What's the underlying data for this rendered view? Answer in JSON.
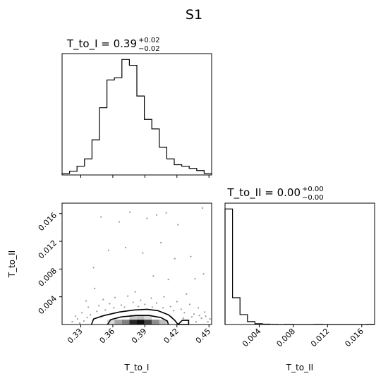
{
  "figure": {
    "title": "S1"
  },
  "chart_data": [
    {
      "type": "bar",
      "panel": "histogram-T_to_I",
      "title_main": "T_to_I = 0.39",
      "title_sup": "+0.02",
      "title_sub": "−0.02",
      "bin_edges": [
        0.3125,
        0.3195,
        0.3265,
        0.3335,
        0.3405,
        0.3475,
        0.3545,
        0.3615,
        0.3685,
        0.3755,
        0.3825,
        0.3895,
        0.3965,
        0.4035,
        0.4105,
        0.4175,
        0.4245,
        0.4315,
        0.4385,
        0.4455,
        0.4525
      ],
      "values": [
        2,
        5,
        12,
        22,
        48,
        92,
        130,
        133,
        158,
        150,
        108,
        76,
        63,
        38,
        22,
        14,
        12,
        9,
        6,
        2
      ],
      "xlim": [
        0.3125,
        0.4525
      ],
      "ylim": [
        0,
        166
      ],
      "xticks": [
        0.33,
        0.36,
        0.39,
        0.42,
        0.45
      ]
    },
    {
      "type": "heatmap",
      "panel": "2d-density-T_to_I-vs-T_to_II",
      "xlabel": "T_to_I",
      "ylabel": "T_to_II",
      "xlim": [
        0.3125,
        0.4525
      ],
      "ylim": [
        0.0,
        0.0175
      ],
      "xticks": [
        0.33,
        0.36,
        0.39,
        0.42,
        0.45
      ],
      "xtick_labels": [
        "0.33",
        "0.36",
        "0.39",
        "0.42",
        "0.45"
      ],
      "yticks": [
        0.004,
        0.008,
        0.012,
        0.016
      ],
      "ytick_labels": [
        "0.004",
        "0.008",
        "0.012",
        "0.016"
      ],
      "density_cells": [
        {
          "x": [
            0.3615,
            0.3685
          ],
          "y": [
            0.0,
            0.0007
          ],
          "level": 0.35
        },
        {
          "x": [
            0.3685,
            0.3755
          ],
          "y": [
            0.0,
            0.0007
          ],
          "level": 0.5
        },
        {
          "x": [
            0.3755,
            0.3825
          ],
          "y": [
            0.0,
            0.0007
          ],
          "level": 0.85
        },
        {
          "x": [
            0.3825,
            0.3895
          ],
          "y": [
            0.0,
            0.0007
          ],
          "level": 0.95
        },
        {
          "x": [
            0.3895,
            0.3965
          ],
          "y": [
            0.0,
            0.0007
          ],
          "level": 0.75
        },
        {
          "x": [
            0.3965,
            0.4035
          ],
          "y": [
            0.0,
            0.0007
          ],
          "level": 0.45
        },
        {
          "x": [
            0.4035,
            0.4105
          ],
          "y": [
            0.0,
            0.0007
          ],
          "level": 0.25
        },
        {
          "x": [
            0.3545,
            0.3615
          ],
          "y": [
            0.0,
            0.0007
          ],
          "level": 0.15
        },
        {
          "x": [
            0.3755,
            0.3825
          ],
          "y": [
            0.0007,
            0.0014
          ],
          "level": 0.2
        },
        {
          "x": [
            0.3825,
            0.3895
          ],
          "y": [
            0.0007,
            0.0014
          ],
          "level": 0.25
        },
        {
          "x": [
            0.3895,
            0.3965
          ],
          "y": [
            0.0007,
            0.0014
          ],
          "level": 0.15
        }
      ],
      "contours": [
        {
          "name": "outer",
          "points": [
            [
              0.34,
              0.0
            ],
            [
              0.342,
              0.0008
            ],
            [
              0.352,
              0.0013
            ],
            [
              0.366,
              0.0018
            ],
            [
              0.38,
              0.0021
            ],
            [
              0.392,
              0.0022
            ],
            [
              0.402,
              0.002
            ],
            [
              0.412,
              0.0014
            ],
            [
              0.418,
              0.0006
            ],
            [
              0.421,
              0.0
            ],
            [
              0.431,
              0.0
            ],
            [
              0.431,
              0.0006
            ],
            [
              0.425,
              0.0006
            ],
            [
              0.421,
              0.0
            ]
          ]
        },
        {
          "name": "inner",
          "points": [
            [
              0.355,
              0.0
            ],
            [
              0.358,
              0.0007
            ],
            [
              0.368,
              0.0011
            ],
            [
              0.382,
              0.0013
            ],
            [
              0.394,
              0.0013
            ],
            [
              0.405,
              0.001
            ],
            [
              0.411,
              0.0005
            ],
            [
              0.412,
              0.0
            ]
          ]
        }
      ],
      "scatter_points": [
        [
          0.349,
          0.0155
        ],
        [
          0.366,
          0.0148
        ],
        [
          0.376,
          0.0162
        ],
        [
          0.392,
          0.0153
        ],
        [
          0.401,
          0.0158
        ],
        [
          0.41,
          0.0161
        ],
        [
          0.421,
          0.0144
        ],
        [
          0.444,
          0.0168
        ],
        [
          0.356,
          0.0107
        ],
        [
          0.372,
          0.0111
        ],
        [
          0.388,
          0.0103
        ],
        [
          0.405,
          0.0118
        ],
        [
          0.418,
          0.0095
        ],
        [
          0.433,
          0.0098
        ],
        [
          0.342,
          0.0082
        ],
        [
          0.398,
          0.007
        ],
        [
          0.412,
          0.0065
        ],
        [
          0.437,
          0.0066
        ],
        [
          0.445,
          0.0073
        ],
        [
          0.343,
          0.0052
        ],
        [
          0.381,
          0.0047
        ],
        [
          0.429,
          0.0044
        ],
        [
          0.335,
          0.0034
        ],
        [
          0.351,
          0.0036
        ],
        [
          0.362,
          0.0039
        ],
        [
          0.374,
          0.0041
        ],
        [
          0.386,
          0.0035
        ],
        [
          0.396,
          0.0038
        ],
        [
          0.408,
          0.004
        ],
        [
          0.42,
          0.0033
        ],
        [
          0.432,
          0.0029
        ],
        [
          0.44,
          0.0024
        ],
        [
          0.446,
          0.0018
        ],
        [
          0.331,
          0.0017
        ],
        [
          0.337,
          0.0025
        ],
        [
          0.347,
          0.0027
        ],
        [
          0.357,
          0.003
        ],
        [
          0.368,
          0.0028
        ],
        [
          0.379,
          0.0032
        ],
        [
          0.39,
          0.0029
        ],
        [
          0.401,
          0.0031
        ],
        [
          0.414,
          0.0026
        ],
        [
          0.424,
          0.0022
        ],
        [
          0.436,
          0.0015
        ],
        [
          0.443,
          0.0009
        ],
        [
          0.449,
          0.0004
        ],
        [
          0.327,
          0.0008
        ],
        [
          0.333,
          0.0005
        ],
        [
          0.339,
          0.0014
        ],
        [
          0.345,
          0.0019
        ],
        [
          0.353,
          0.0021
        ],
        [
          0.361,
          0.0024
        ],
        [
          0.371,
          0.0025
        ],
        [
          0.384,
          0.0026
        ],
        [
          0.397,
          0.0025
        ],
        [
          0.407,
          0.0024
        ],
        [
          0.417,
          0.002
        ],
        [
          0.427,
          0.0017
        ],
        [
          0.434,
          0.0011
        ],
        [
          0.438,
          0.0004
        ],
        [
          0.329,
          0.0002
        ],
        [
          0.336,
          0.001
        ],
        [
          0.349,
          0.0012
        ],
        [
          0.415,
          0.0011
        ],
        [
          0.426,
          0.0009
        ],
        [
          0.441,
          0.0013
        ],
        [
          0.447,
          0.0012
        ],
        [
          0.322,
          0.0004
        ],
        [
          0.325,
          0.0012
        ],
        [
          0.451,
          0.0008
        ]
      ]
    },
    {
      "type": "bar",
      "panel": "histogram-T_to_II",
      "title_main": "T_to_II = 0.00",
      "title_sup": "+0.00",
      "title_sub": "−0.00",
      "xlabel": "T_to_II",
      "bin_edges": [
        0.0,
        0.000875,
        0.00175,
        0.002625,
        0.0035,
        0.004375,
        0.00525,
        0.006125,
        0.007,
        0.007875,
        0.00875,
        0.009625,
        0.0105,
        0.011375,
        0.01225,
        0.013125,
        0.014,
        0.014875,
        0.01575,
        0.016625,
        0.0175
      ],
      "values": [
        560,
        130,
        48,
        14,
        4,
        2,
        1,
        0,
        1,
        0,
        0,
        0,
        1,
        0,
        0,
        0,
        0,
        0,
        0,
        1
      ],
      "xlim": [
        0.0,
        0.0175
      ],
      "ylim": [
        0,
        588
      ],
      "xticks": [
        0.004,
        0.008,
        0.012,
        0.016
      ],
      "xtick_labels": [
        "0.004",
        "0.008",
        "0.012",
        "0.016"
      ]
    }
  ]
}
